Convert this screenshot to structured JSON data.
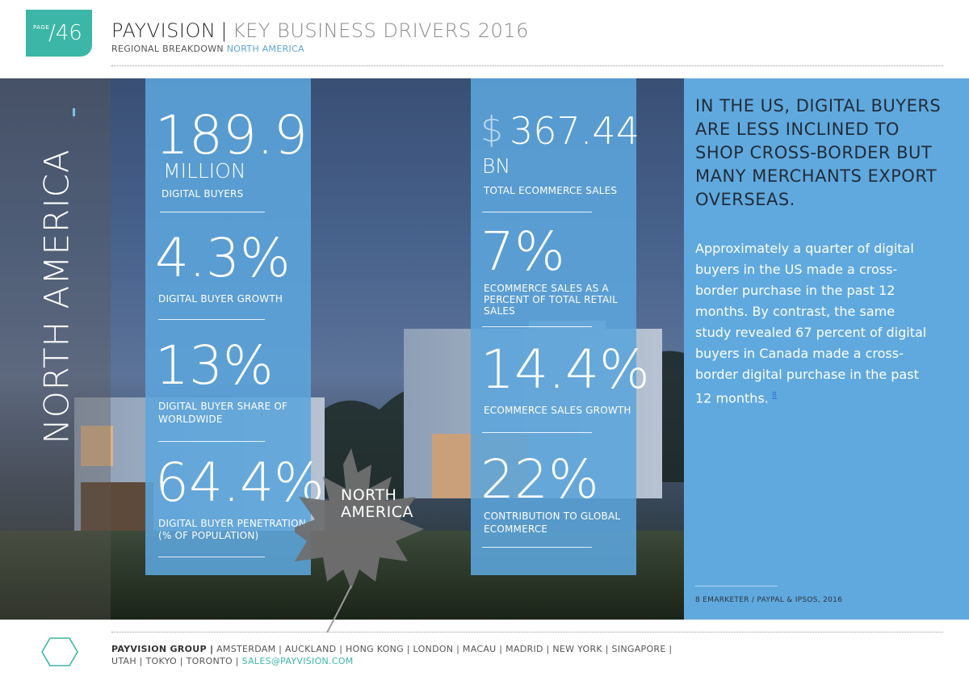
{
  "header": {
    "page_word": "PAGE",
    "page_number": "/46",
    "brand": "PAYVISION",
    "separator": "|",
    "title": "KEY BUSINESS DRIVERS 2016",
    "breadcrumb_lead": "REGIONAL BREAKDOWN",
    "breadcrumb_region": "NORTH AMERICA"
  },
  "region_vertical_title": "NORTH AMERICA",
  "stats_left": [
    {
      "value": "189.9",
      "unit": "MILLION",
      "label": "DIGITAL BUYERS"
    },
    {
      "value": "4.3%",
      "label": "DIGITAL BUYER GROWTH"
    },
    {
      "value": "13%",
      "label_lines": [
        "DIGITAL BUYER SHARE OF",
        "WORLDWIDE"
      ]
    },
    {
      "value": "64.4%",
      "label_lines": [
        "DIGITAL BUYER PENETRATION",
        "(% OF POPULATION)"
      ]
    }
  ],
  "stats_right": [
    {
      "currency": "$",
      "value": "367.44",
      "unit": "BN",
      "label": "TOTAL ECOMMERCE SALES"
    },
    {
      "value": "7%",
      "label_lines": [
        "ECOMMERCE SALES AS A",
        "PERCENT OF TOTAL RETAIL",
        "SALES"
      ]
    },
    {
      "value": "14.4%",
      "label": "ECOMMERCE SALES GROWTH"
    },
    {
      "value": "22%",
      "label_lines": [
        "CONTRIBUTION TO GLOBAL",
        "ECOMMERCE"
      ]
    }
  ],
  "leaf_label": [
    "NORTH",
    "AMERICA"
  ],
  "panel": {
    "headline_lines": [
      "IN THE US, DIGITAL BUYERS",
      "ARE LESS INCLINED TO",
      "SHOP CROSS-BORDER BUT",
      "MANY MERCHANTS EXPORT",
      "OVERSEAS."
    ],
    "body_lines": [
      "Approximately a quarter of digital",
      "buyers in the US made a cross-",
      "border purchase in the past 12",
      "months. By contrast, the same",
      "study revealed 67 percent of digital",
      "buyers in Canada made a cross-",
      "border digital purchase in the past",
      "12 months."
    ],
    "footnote_ref": "8",
    "footnote": "8   EMARKETER / PAYPAL & IPSOS, 2016"
  },
  "footer": {
    "company": "PAYVISION GROUP |",
    "cities_line1": "AMSTERDAM | AUCKLAND | HONG KONG | LONDON | MACAU | MADRID | NEW YORK | SINGAPORE |",
    "cities_line2": "UTAH | TOKYO | TORONTO |",
    "email": "SALES@PAYVISION.COM"
  },
  "colors": {
    "teal": "#3cb6a6",
    "blue_panel": "#60a9de",
    "blue_column": "#5ca5dc",
    "accent_text": "#5aa5d6"
  }
}
